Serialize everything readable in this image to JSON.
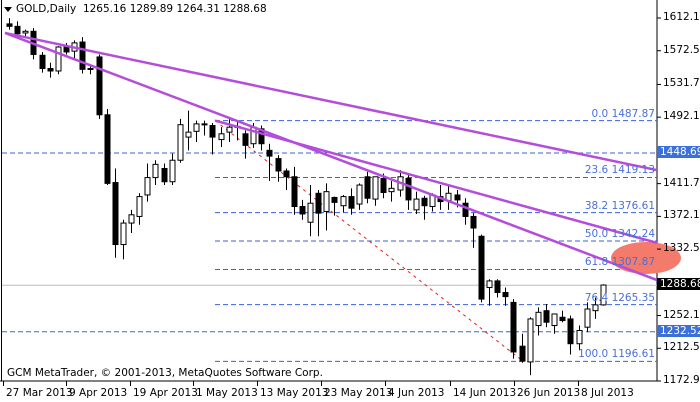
{
  "header": {
    "symbol_timeframe": "GOLD,Daily",
    "ohlc": "1265.16 1289.89 1264.31 1288.68"
  },
  "footer": {
    "copyright": "GCM MetaTrader, © 2001-2013, MetaQuotes Software Corp."
  },
  "colors": {
    "trendline": "#b44ddc",
    "fib_line": "#3a62d6",
    "fib_text": "#4a6fd8",
    "fib_diagonal": "#e0201e",
    "highlight_label": "#3a70d8",
    "current_price_label": "#000000",
    "ellipse": "#f47b6b",
    "candle": "#000000"
  },
  "chart_data": {
    "type": "candlestick",
    "title": "GOLD,Daily",
    "ohlc_current": {
      "open": 1265.16,
      "high": 1289.89,
      "low": 1264.31,
      "close": 1288.68
    },
    "y_axis": {
      "ticks": [
        1612.1,
        1572.5,
        1531.7,
        1492.1,
        1448.69,
        1411.7,
        1372.1,
        1332.5,
        1288.68,
        1252.1,
        1232.52,
        1212.5,
        1172.9
      ],
      "highlighted": [
        {
          "value": "1448.69",
          "style": "blue"
        },
        {
          "value": "1288.68",
          "style": "black"
        },
        {
          "value": "1232.52",
          "style": "blue"
        }
      ],
      "ylim": [
        1165,
        1625
      ]
    },
    "x_axis": {
      "ticks": [
        "27 Mar 2013",
        "9 Apr 2013",
        "19 Apr 2013",
        "1 May 2013",
        "13 May 2013",
        "23 May 2013",
        "4 Jun 2013",
        "14 Jun 2013",
        "26 Jun 2013",
        "8 Jul 2013"
      ]
    },
    "fibonacci": [
      {
        "level": "0.0",
        "price": "1487.87"
      },
      {
        "level": "23.6",
        "price": "1419.13"
      },
      {
        "level": "38.2",
        "price": "1376.61"
      },
      {
        "level": "50.0",
        "price": "1342.24"
      },
      {
        "level": "61.8",
        "price": "1307.87"
      },
      {
        "level": "76.4",
        "price": "1265.35"
      },
      {
        "level": "100.0",
        "price": "1196.61"
      }
    ],
    "horizontal_lines": [
      1448.69,
      1232.52,
      1288.68
    ],
    "candles": [
      [
        1605,
        1612,
        1598,
        1602
      ],
      [
        1602,
        1608,
        1590,
        1593
      ],
      [
        1594,
        1598,
        1588,
        1596
      ],
      [
        1596,
        1600,
        1562,
        1568
      ],
      [
        1567,
        1571,
        1546,
        1551
      ],
      [
        1551,
        1558,
        1540,
        1548
      ],
      [
        1548,
        1578,
        1544,
        1577
      ],
      [
        1577,
        1582,
        1568,
        1571
      ],
      [
        1572,
        1585,
        1562,
        1582
      ],
      [
        1583,
        1589,
        1545,
        1550
      ],
      [
        1551,
        1556,
        1544,
        1550
      ],
      [
        1565,
        1568,
        1490,
        1495
      ],
      [
        1495,
        1502,
        1410,
        1412
      ],
      [
        1413,
        1430,
        1322,
        1338
      ],
      [
        1338,
        1368,
        1320,
        1364
      ],
      [
        1364,
        1380,
        1352,
        1374
      ],
      [
        1372,
        1400,
        1362,
        1396
      ],
      [
        1398,
        1436,
        1390,
        1419
      ],
      [
        1419,
        1440,
        1410,
        1435
      ],
      [
        1430,
        1436,
        1410,
        1414
      ],
      [
        1414,
        1448,
        1410,
        1440
      ],
      [
        1440,
        1490,
        1437,
        1483
      ],
      [
        1468,
        1500,
        1452,
        1474
      ],
      [
        1475,
        1488,
        1462,
        1484
      ],
      [
        1483,
        1488,
        1470,
        1484
      ],
      [
        1482,
        1485,
        1447,
        1468
      ],
      [
        1465,
        1480,
        1456,
        1472
      ],
      [
        1474,
        1492,
        1462,
        1480
      ],
      [
        1480,
        1487,
        1464,
        1481
      ],
      [
        1472,
        1476,
        1442,
        1458
      ],
      [
        1460,
        1485,
        1455,
        1480
      ],
      [
        1478,
        1482,
        1452,
        1460
      ],
      [
        1452,
        1460,
        1415,
        1445
      ],
      [
        1442,
        1446,
        1414,
        1427
      ],
      [
        1427,
        1430,
        1404,
        1420
      ],
      [
        1420,
        1432,
        1374,
        1384
      ],
      [
        1384,
        1392,
        1368,
        1375
      ],
      [
        1365,
        1410,
        1348,
        1388
      ],
      [
        1400,
        1404,
        1348,
        1376
      ],
      [
        1378,
        1412,
        1355,
        1402
      ],
      [
        1395,
        1396,
        1373,
        1389
      ],
      [
        1385,
        1398,
        1377,
        1396
      ],
      [
        1396,
        1406,
        1374,
        1382
      ],
      [
        1387,
        1412,
        1380,
        1410
      ],
      [
        1420,
        1426,
        1388,
        1394
      ],
      [
        1393,
        1412,
        1385,
        1420
      ],
      [
        1418,
        1424,
        1394,
        1401
      ],
      [
        1402,
        1415,
        1390,
        1406
      ],
      [
        1404,
        1428,
        1396,
        1420
      ],
      [
        1418,
        1424,
        1380,
        1392
      ],
      [
        1380,
        1402,
        1375,
        1393
      ],
      [
        1394,
        1397,
        1368,
        1385
      ],
      [
        1384,
        1400,
        1378,
        1398
      ],
      [
        1396,
        1410,
        1380,
        1390
      ],
      [
        1391,
        1410,
        1380,
        1400
      ],
      [
        1398,
        1404,
        1383,
        1392
      ],
      [
        1388,
        1394,
        1362,
        1372
      ],
      [
        1372,
        1376,
        1334,
        1358
      ],
      [
        1348,
        1350,
        1268,
        1272
      ],
      [
        1286,
        1296,
        1264,
        1294
      ],
      [
        1294,
        1296,
        1274,
        1280
      ],
      [
        1280,
        1286,
        1264,
        1275
      ],
      [
        1268,
        1272,
        1200,
        1208
      ],
      [
        1215,
        1230,
        1195,
        1197
      ],
      [
        1196,
        1250,
        1180,
        1248
      ],
      [
        1240,
        1262,
        1228,
        1256
      ],
      [
        1258,
        1266,
        1238,
        1244
      ],
      [
        1240,
        1254,
        1230,
        1254
      ],
      [
        1250,
        1258,
        1244,
        1246
      ],
      [
        1248,
        1252,
        1205,
        1218
      ],
      [
        1218,
        1240,
        1210,
        1234
      ],
      [
        1238,
        1268,
        1232,
        1260
      ],
      [
        1258,
        1274,
        1248,
        1265
      ],
      [
        1265,
        1290,
        1264,
        1289
      ]
    ],
    "trendlines": [
      {
        "from": [
          5,
          1594
        ],
        "to": [
          657,
          1428
        ]
      },
      {
        "from": [
          5,
          1594
        ],
        "to": [
          657,
          1295
        ]
      },
      {
        "from": [
          215,
          1488
        ],
        "to": [
          657,
          1340
        ]
      }
    ],
    "fib_diagonal": {
      "from": [
        215,
        1488
      ],
      "to": [
        524,
        1196
      ]
    }
  }
}
